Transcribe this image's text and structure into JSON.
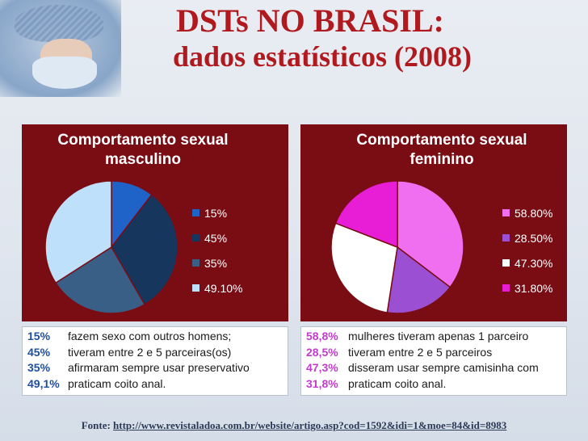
{
  "title": {
    "line1": "DSTs NO BRASIL:",
    "line2": "dados estatísticos (2008)"
  },
  "chart_data": [
    {
      "type": "pie",
      "title": "Comportamento sexual masculino",
      "title_line1": "Comportamento sexual",
      "title_line2": "masculino",
      "categories": [
        "15%",
        "45%",
        "35%",
        "49.10%"
      ],
      "values": [
        15,
        45,
        35,
        49.1
      ],
      "colors": [
        "#1f63c8",
        "#17365d",
        "#3a5f86",
        "#bfe0fb"
      ],
      "legend_position": "right"
    },
    {
      "type": "pie",
      "title": "Comportamento sexual feminino",
      "title_line1": "Comportamento sexual",
      "title_line2": "feminino",
      "categories": [
        "58.80%",
        "28.50%",
        "47.30%",
        "31.80%"
      ],
      "values": [
        58.8,
        28.5,
        47.3,
        31.8
      ],
      "colors": [
        "#f06ef0",
        "#9b4fd2",
        "#ffffff",
        "#e81ed6"
      ],
      "legend_position": "right"
    }
  ],
  "notes_male": [
    {
      "pct": "15%",
      "text": "fazem sexo com outros homens;"
    },
    {
      "pct": "45%",
      "text": "tiveram entre 2 e 5 parceiras(os)"
    },
    {
      "pct": "35%",
      "text": "afirmaram sempre usar preservativo"
    },
    {
      "pct": "49,1%",
      "text": "praticam coito anal."
    }
  ],
  "notes_female": [
    {
      "pct": "58,8%",
      "text": "mulheres tiveram apenas 1 parceiro"
    },
    {
      "pct": "28,5%",
      "text": "tiveram entre 2 e 5 parceiros"
    },
    {
      "pct": "47,3%",
      "text": "disseram usar sempre camisinha com"
    },
    {
      "pct": "31,8%",
      "text": "praticam coito anal."
    }
  ],
  "source": {
    "label": "Fonte:",
    "url": "http://www.revistaladoa.com.br/website/artigo.asp?cod=1592&idi=1&moe=84&id=8983"
  }
}
